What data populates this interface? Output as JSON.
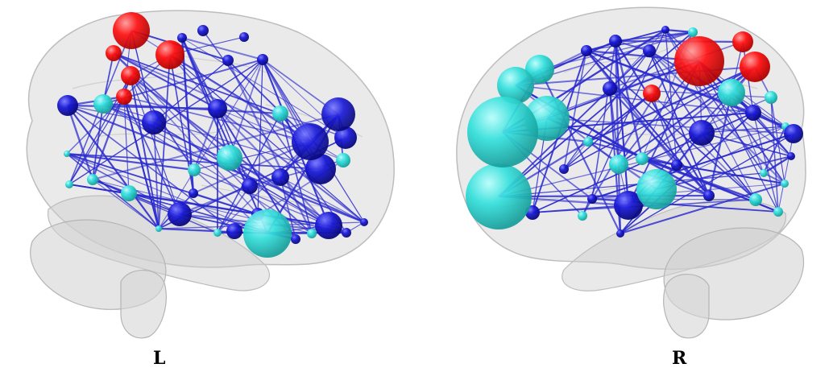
{
  "views": [
    {
      "id": "left",
      "label": "L"
    },
    {
      "id": "right",
      "label": "R"
    }
  ],
  "colors": {
    "background": "#ffffff",
    "brain": "#d9d9d9",
    "edge": "#2a2acf",
    "node_red": "#ff0000",
    "node_cyan": "#33e0dc",
    "node_blue": "#1a1ad8"
  }
}
